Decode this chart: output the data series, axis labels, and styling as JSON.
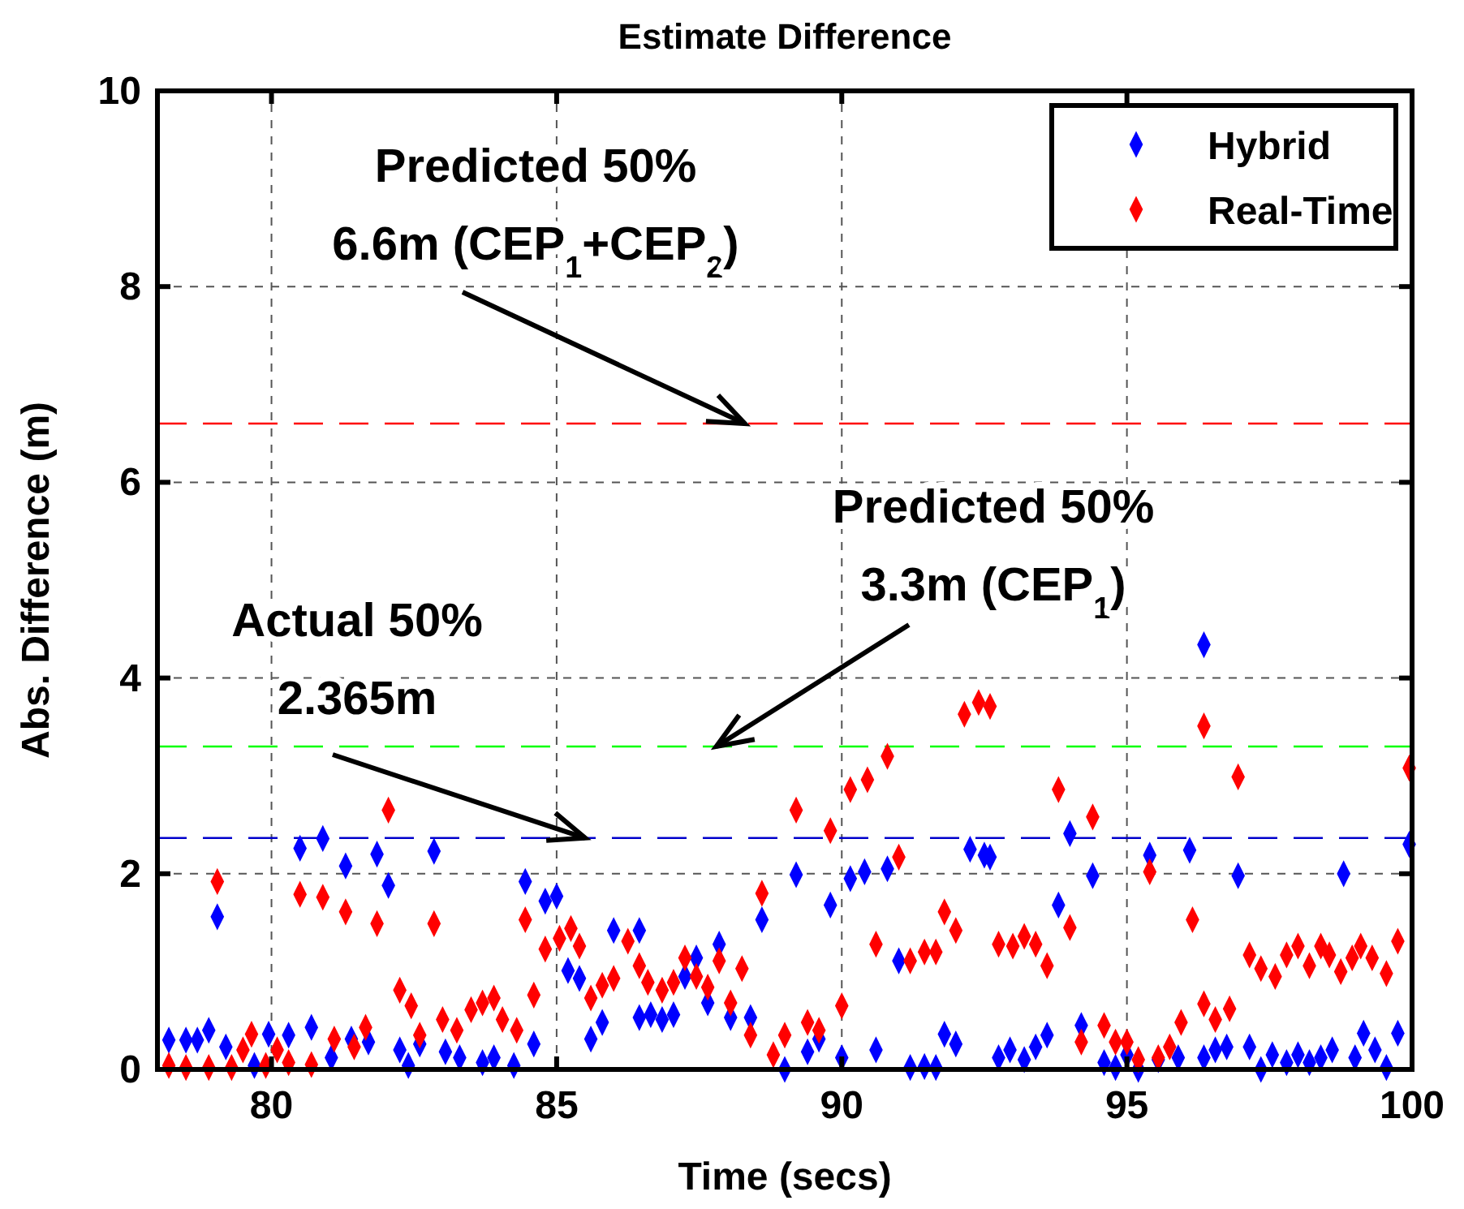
{
  "chart_data": {
    "type": "scatter",
    "title": "Estimate Difference",
    "xlabel": "Time (secs)",
    "ylabel": "Abs. Difference (m)",
    "xlim": [
      78,
      100
    ],
    "xticks": [
      80,
      85,
      90,
      95,
      100
    ],
    "ylim": [
      0,
      10
    ],
    "yticks": [
      0,
      2,
      4,
      6,
      8,
      10
    ],
    "grid": true,
    "legend": "top right",
    "marker": "diamond",
    "series": [
      {
        "name": "Hybrid",
        "color": "#0000ff",
        "x": [
          78.2,
          78.5,
          78.7,
          78.9,
          79.05,
          79.2,
          79.7,
          79.95,
          80.3,
          80.5,
          80.7,
          80.9,
          81.05,
          81.3,
          81.4,
          81.7,
          81.85,
          82.05,
          82.25,
          82.4,
          82.6,
          82.85,
          83.05,
          83.3,
          83.7,
          83.9,
          84.25,
          84.45,
          84.6,
          84.8,
          85.0,
          85.2,
          85.4,
          85.6,
          85.8,
          86.0,
          86.45,
          86.45,
          86.65,
          86.85,
          87.05,
          87.25,
          87.45,
          87.65,
          87.85,
          88.05,
          88.4,
          88.6,
          89.0,
          89.2,
          89.4,
          89.6,
          89.8,
          90.0,
          90.15,
          90.4,
          90.6,
          90.8,
          91.0,
          91.2,
          91.45,
          91.65,
          91.8,
          92.0,
          92.25,
          92.5,
          92.6,
          92.75,
          92.95,
          93.2,
          93.4,
          93.6,
          93.8,
          94.0,
          94.2,
          94.4,
          94.6,
          94.8,
          95.0,
          95.2,
          95.4,
          95.55,
          95.9,
          96.1,
          96.35,
          96.35,
          96.55,
          96.75,
          96.95,
          97.15,
          97.35,
          97.55,
          97.8,
          98.0,
          98.2,
          98.4,
          98.6,
          98.8,
          99.0,
          99.15,
          99.35,
          99.55,
          99.75,
          99.95
        ],
        "values": [
          0.3,
          0.3,
          0.3,
          0.4,
          1.56,
          0.23,
          0.04,
          0.36,
          0.35,
          2.26,
          0.43,
          2.36,
          0.12,
          2.08,
          0.31,
          0.28,
          2.2,
          1.88,
          0.2,
          0.04,
          0.26,
          2.23,
          0.18,
          0.12,
          0.07,
          0.12,
          0.04,
          1.92,
          0.26,
          1.72,
          1.77,
          1.01,
          0.93,
          0.31,
          0.48,
          1.42,
          1.42,
          0.53,
          0.56,
          0.51,
          0.56,
          0.95,
          1.14,
          0.68,
          1.28,
          0.53,
          0.53,
          1.53,
          0,
          1.99,
          0.18,
          0.31,
          1.68,
          0.12,
          1.95,
          2.02,
          0.2,
          2.05,
          1.11,
          0.02,
          0.03,
          0.02,
          0.36,
          0.26,
          2.25,
          2.19,
          2.17,
          0.12,
          0.2,
          0.1,
          0.23,
          0.35,
          1.68,
          2.41,
          0.45,
          1.98,
          0.07,
          0.02,
          0.15,
          0,
          2.19,
          0.1,
          0.12,
          2.24,
          4.34,
          0.12,
          0.2,
          0.23,
          1.98,
          0.23,
          0,
          0.15,
          0.07,
          0.15,
          0.07,
          0.12,
          0.2,
          2.0,
          0.12,
          0.37,
          0.2,
          0.02,
          0.37,
          2.3
        ]
      },
      {
        "name": "Real-Time",
        "color": "#ff0000",
        "x": [
          78.2,
          78.5,
          78.9,
          79.05,
          79.3,
          79.5,
          79.65,
          79.9,
          80.1,
          80.3,
          80.5,
          80.7,
          80.9,
          81.1,
          81.3,
          81.45,
          81.65,
          81.85,
          82.05,
          82.25,
          82.45,
          82.6,
          82.85,
          83.0,
          83.25,
          83.5,
          83.7,
          83.9,
          84.05,
          84.3,
          84.45,
          84.6,
          84.8,
          85.05,
          85.25,
          85.4,
          85.6,
          85.8,
          86.0,
          86.25,
          86.45,
          86.6,
          86.85,
          87.05,
          87.25,
          87.45,
          87.65,
          87.85,
          88.05,
          88.25,
          88.4,
          88.6,
          88.8,
          89.0,
          89.2,
          89.4,
          89.6,
          89.8,
          90.0,
          90.15,
          90.45,
          90.6,
          90.8,
          91.0,
          91.2,
          91.45,
          91.65,
          91.8,
          92.0,
          92.15,
          92.4,
          92.6,
          92.75,
          93.0,
          93.2,
          93.4,
          93.6,
          93.8,
          94.0,
          94.2,
          94.4,
          94.6,
          94.8,
          95.0,
          95.2,
          95.4,
          95.55,
          95.75,
          95.95,
          96.15,
          96.35,
          96.35,
          96.55,
          96.8,
          96.95,
          97.15,
          97.35,
          97.6,
          97.8,
          98.0,
          98.2,
          98.4,
          98.55,
          98.75,
          98.95,
          99.1,
          99.3,
          99.55,
          99.75,
          99.95
        ],
        "values": [
          0.04,
          0.02,
          0.02,
          1.92,
          0.02,
          0.2,
          0.36,
          0.04,
          0.2,
          0.07,
          1.79,
          0.05,
          1.76,
          0.31,
          1.61,
          0.23,
          0.43,
          1.49,
          2.65,
          0.81,
          0.65,
          0.35,
          1.49,
          0.51,
          0.4,
          0.61,
          0.68,
          0.73,
          0.51,
          0.4,
          1.53,
          0.76,
          1.23,
          1.34,
          1.44,
          1.26,
          0.73,
          0.86,
          0.93,
          1.31,
          1.06,
          0.89,
          0.81,
          0.89,
          1.14,
          0.95,
          0.84,
          1.11,
          0.68,
          1.03,
          0.35,
          1.8,
          0.15,
          0.35,
          2.65,
          0.48,
          0.4,
          2.44,
          0.65,
          2.86,
          2.96,
          1.28,
          3.2,
          2.17,
          1.11,
          1.2,
          1.2,
          1.61,
          1.42,
          3.63,
          3.75,
          3.71,
          1.28,
          1.26,
          1.36,
          1.28,
          1.06,
          2.86,
          1.45,
          0.28,
          2.58,
          0.45,
          0.28,
          0.28,
          0.1,
          2.02,
          0.12,
          0.23,
          0.48,
          1.53,
          0.67,
          3.51,
          0.51,
          0.62,
          2.99,
          1.17,
          1.03,
          0.95,
          1.17,
          1.26,
          1.06,
          1.26,
          1.17,
          1.0,
          1.14,
          1.26,
          1.14,
          0.98,
          1.31,
          3.08
        ]
      }
    ],
    "ref_lines": [
      {
        "axis": "y",
        "value": 6.6,
        "color": "#ff0000",
        "line_style": "dashed"
      },
      {
        "axis": "y",
        "value": 3.3,
        "color": "#00ff00",
        "line_style": "dashed"
      },
      {
        "axis": "y",
        "value": 2.365,
        "color": "#0000cc",
        "line_style": "dashed"
      }
    ],
    "annotations": [
      {
        "text": "Predicted 50%\n6.6m (CEP$_{1}$+CEP$_{2}$)",
        "x": 88.3,
        "y": 6.6
      },
      {
        "text": "Predicted 50%\n3.3m (CEP$_{1}$)",
        "x": 87.8,
        "y": 3.3
      },
      {
        "text": "Actual 50%\n2.365m",
        "x": 85.5,
        "y": 2.365
      }
    ]
  }
}
